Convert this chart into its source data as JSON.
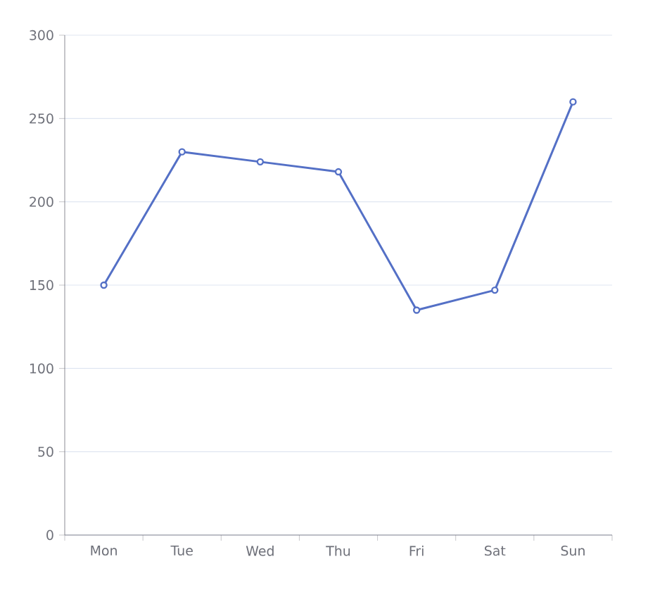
{
  "chart_data": {
    "type": "line",
    "categories": [
      "Mon",
      "Tue",
      "Wed",
      "Thu",
      "Fri",
      "Sat",
      "Sun"
    ],
    "series": [
      {
        "color": "#5470c6",
        "values": [
          150,
          230,
          224,
          218,
          135,
          147,
          260
        ]
      }
    ],
    "ylim": [
      0,
      300
    ],
    "yticks": [
      0,
      50,
      100,
      150,
      200,
      250,
      300
    ],
    "grid": "y",
    "marker": "circle",
    "line_style": "solid"
  }
}
